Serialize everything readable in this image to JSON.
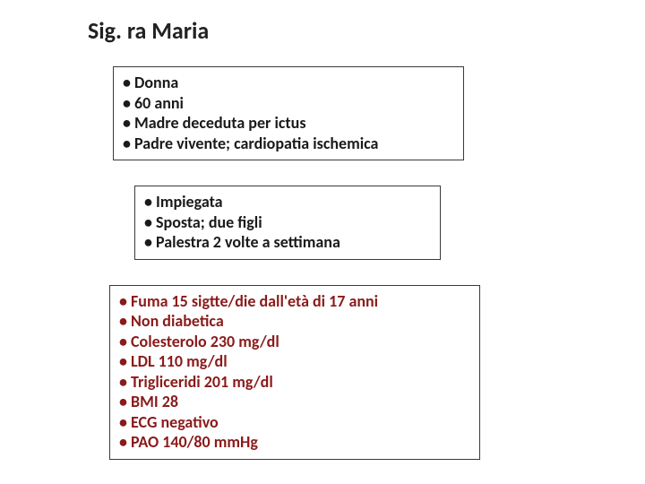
{
  "title": "Sig. ra Maria",
  "box1": {
    "color_class": "black",
    "fontsize": 18,
    "items": [
      "• Donna",
      "• 60 anni",
      "• Madre deceduta per ictus",
      "• Padre vivente; cardiopatia ischemica"
    ]
  },
  "box2": {
    "color_class": "black",
    "fontsize": 18,
    "items": [
      "• Impiegata",
      "• Sposta; due figli",
      "• Palestra 2 volte a settimana"
    ]
  },
  "box3": {
    "color_class": "darkred",
    "fontsize": 18,
    "items": [
      "• Fuma 15 sigtte/die dall'età di 17 anni",
      "• Non diabetica",
      "• Colesterolo 230 mg/dl",
      "• LDL 110 mg/dl",
      "• Trigliceridi 201 mg/dl",
      "• BMI 28",
      "• ECG  negativo",
      "• PAO 140/80 mmHg"
    ]
  },
  "colors": {
    "title": "#222222",
    "black_text": "#1a1a1a",
    "darkred_text": "#8b1a1a",
    "border": "#3a3a3a",
    "background": "#ffffff"
  }
}
